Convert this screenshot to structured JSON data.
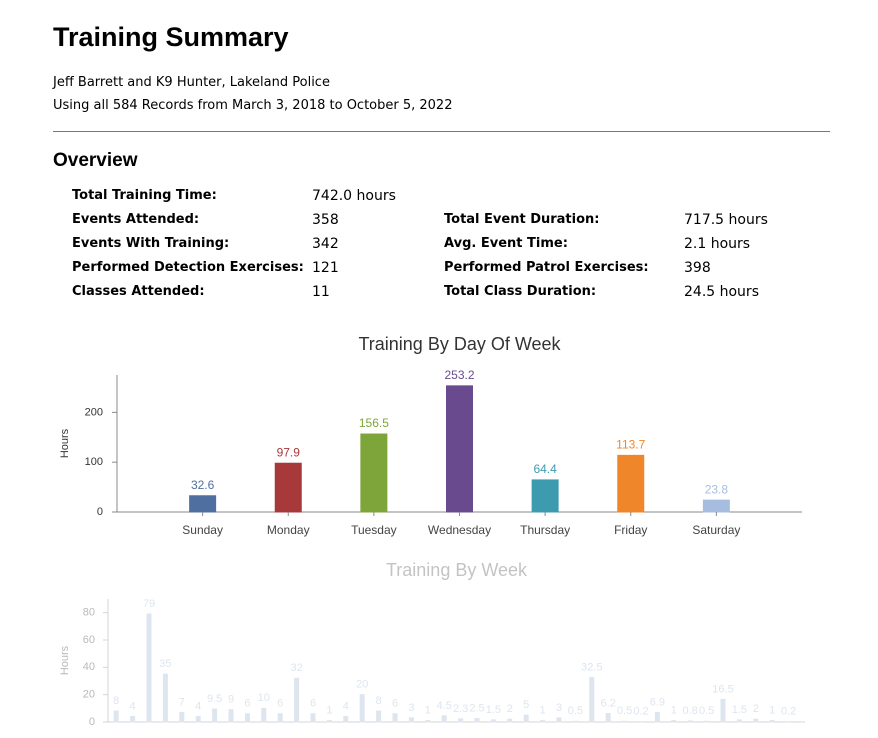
{
  "header": {
    "title": "Training Summary",
    "subtitle": "Jeff Barrett and K9 Hunter, Lakeland Police",
    "records": "Using all 584 Records from March 3, 2018 to October 5, 2022"
  },
  "overview": {
    "title": "Overview",
    "rows": [
      [
        {
          "label": "Total Training Time:",
          "value": "742.0 hours"
        }
      ],
      [
        {
          "label": "Events Attended:",
          "value": "358"
        },
        {
          "label": "Total Event Duration:",
          "value": "717.5 hours"
        }
      ],
      [
        {
          "label": "Events With Training:",
          "value": "342"
        },
        {
          "label": "Avg. Event Time:",
          "value": "2.1 hours"
        }
      ],
      [
        {
          "label": "Performed Detection Exercises:",
          "value": "121"
        },
        {
          "label": "Performed Patrol Exercises:",
          "value": "398"
        }
      ],
      [
        {
          "label": "Classes Attended:",
          "value": "11"
        },
        {
          "label": "Total Class Duration:",
          "value": "24.5 hours"
        }
      ]
    ]
  },
  "chart_data": [
    {
      "type": "bar",
      "title": "Training By Day Of Week",
      "y_label": "Hours",
      "categories": [
        "Sunday",
        "Monday",
        "Tuesday",
        "Wednesday",
        "Thursday",
        "Friday",
        "Saturday"
      ],
      "values": [
        32.6,
        97.9,
        156.5,
        253.2,
        64.4,
        113.7,
        23.8
      ],
      "colors": [
        "#4f6fa0",
        "#a8393b",
        "#7ea53a",
        "#6a4a8e",
        "#3d9bb0",
        "#f0862a",
        "#a7bde0"
      ],
      "ylim": [
        0,
        275
      ],
      "yticks": [
        0,
        100,
        200
      ]
    },
    {
      "type": "bar",
      "title": "Training By Week",
      "y_label": "Hours",
      "values": [
        8,
        4,
        79,
        35,
        7,
        4,
        9.5,
        9,
        6,
        10,
        6,
        32,
        6,
        1,
        4,
        20,
        8,
        6,
        3,
        1,
        4.5,
        2.3,
        2.5,
        1.5,
        2,
        5,
        1,
        3,
        0.5,
        32.5,
        6.2,
        0.5,
        0.2,
        6.9,
        1,
        0.8,
        0.5,
        16.5,
        1.5,
        2,
        1,
        0.2
      ],
      "color": "#9fb4d0",
      "ylim": [
        0,
        90
      ],
      "yticks": [
        0,
        20,
        40,
        60,
        80
      ]
    }
  ]
}
